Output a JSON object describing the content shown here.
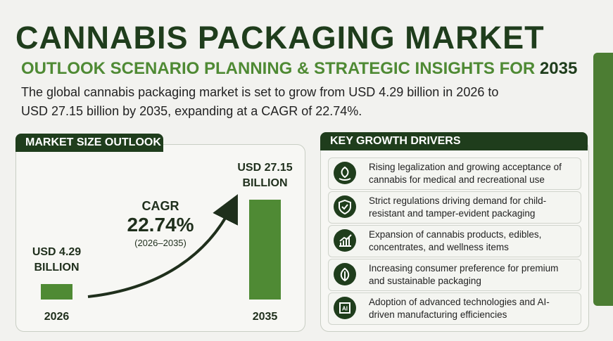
{
  "header": {
    "title": "CANNABIS PACKAGING MARKET",
    "subtitle": "OUTLOOK SCENARIO PLANNING & STRATEGIC INSIGHTS FOR",
    "subtitle_year": "2035",
    "summary": "The global cannabis packaging market is set to grow from USD 4.29 billion in 2026 to USD 27.15 billion by 2035, expanding at a CAGR of 22.74%."
  },
  "chart_data": {
    "type": "bar",
    "title": "MARKET SIZE OUTLOOK",
    "categories": [
      "2026",
      "2035"
    ],
    "values": [
      4.29,
      27.15
    ],
    "value_labels": [
      "USD 4.29 BILLION",
      "USD 27.15 BILLION"
    ],
    "color": "#4f8a34",
    "annotation": {
      "label": "CAGR",
      "value": "22.74%",
      "period": "(2026–2035)"
    }
  },
  "drivers": {
    "title": "KEY GROWTH DRIVERS",
    "items": [
      "Rising legalization and growing acceptance of cannabis for medical and recreational use",
      "Strict regulations driving demand for child-resistant and tamper-evident packaging",
      "Expansion of cannabis products, edibles, concentrates, and wellness items",
      "Increasing consumer preference for premium and sustainable packaging",
      "Adoption of advanced technologies and AI-driven manufacturing efficiencies"
    ]
  }
}
